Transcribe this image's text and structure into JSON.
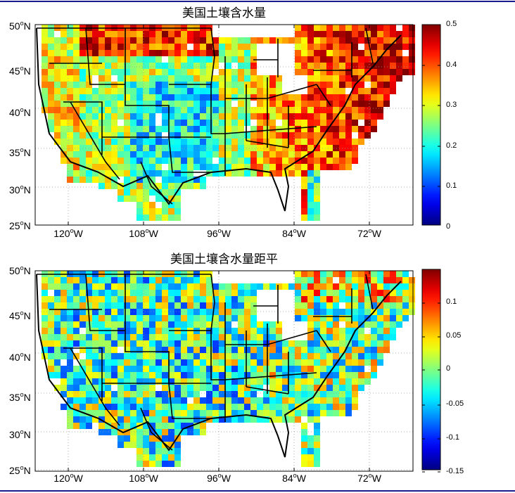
{
  "maps": [
    {
      "title": "美国土壤含水量",
      "lat_labels": [
        "50",
        "45",
        "40",
        "35",
        "30",
        "25"
      ],
      "lon_labels": [
        "120",
        "108",
        "96",
        "84",
        "72"
      ],
      "lat_suffix": "N",
      "lon_suffix": "W",
      "colorbar_ticks": [
        "0.5",
        "0.4",
        "0.3",
        "0.2",
        "0.1",
        "0"
      ],
      "colorbar_range": [
        0,
        0.5
      ],
      "colormap": "jet"
    },
    {
      "title": "美国土壤含水量距平",
      "lat_labels": [
        "50",
        "45",
        "40",
        "35",
        "30",
        "25"
      ],
      "lon_labels": [
        "120",
        "108",
        "96",
        "84",
        "72"
      ],
      "lat_suffix": "N",
      "lon_suffix": "W",
      "colorbar_ticks": [
        "0.1",
        "0.05",
        "0",
        "-0.05",
        "-0.1",
        "-0.15"
      ],
      "colorbar_range": [
        -0.15,
        0.15
      ],
      "colormap": "jet"
    }
  ],
  "colors": {
    "frame": "#1a1a8c",
    "state_borders": "#000000",
    "grid": "#999999"
  }
}
